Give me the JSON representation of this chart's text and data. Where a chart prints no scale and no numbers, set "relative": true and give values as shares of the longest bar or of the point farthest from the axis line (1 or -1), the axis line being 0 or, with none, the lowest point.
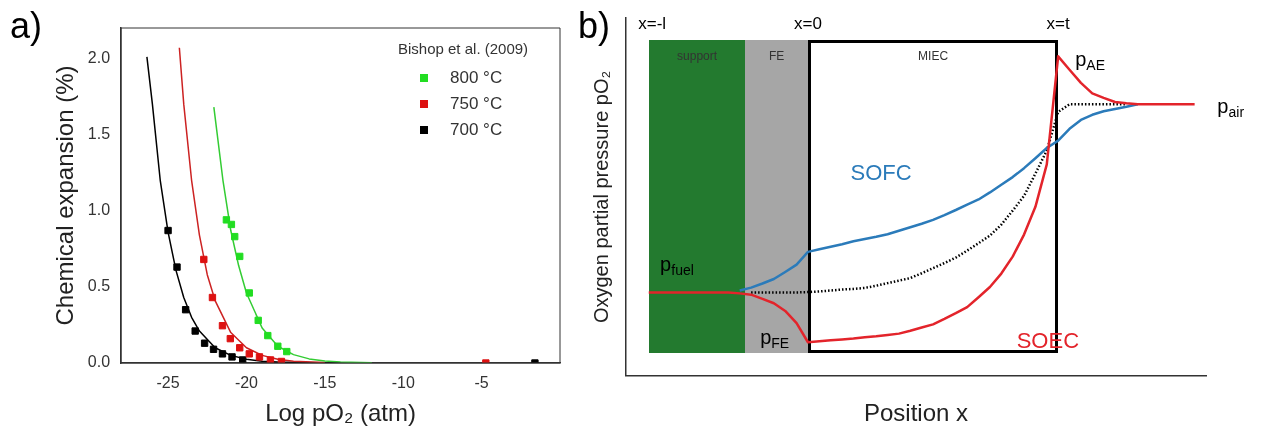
{
  "chart_data": [
    {
      "type": "scatter",
      "title": "a)",
      "xlabel": "Log pO₂ (atm)",
      "ylabel": "Chemical expansion (%)",
      "legend_title": "Bishop et al. (2009)",
      "legend": "top right",
      "xlim": [
        -28,
        0
      ],
      "xticks": [
        -25,
        -20,
        -15,
        -10,
        -5
      ],
      "ylim": [
        0,
        2.2
      ],
      "yticks": [
        {
          "value": 0,
          "label": "0.0"
        },
        {
          "value": 0.5,
          "label": "0.5"
        },
        {
          "value": 1,
          "label": "1.0"
        },
        {
          "value": 1.5,
          "label": "1.5"
        },
        {
          "value": 2,
          "label": "2.0"
        }
      ],
      "series": [
        {
          "name": "800 °C",
          "type": "scatter",
          "marker": "square",
          "color": "#22dd22",
          "x": [
            -21.28,
            -20.96,
            -20.75,
            -20.43,
            -19.82,
            -19.25,
            -18.64,
            -18.0,
            -17.43
          ],
          "values": [
            0.94,
            0.91,
            0.83,
            0.7,
            0.46,
            0.28,
            0.18,
            0.11,
            0.075
          ]
        },
        {
          "name": "750 °C",
          "type": "scatter",
          "marker": "square",
          "color": "#dd1111",
          "x": [
            -22.72,
            -22.17,
            -21.53,
            -21.03,
            -20.43,
            -19.82,
            -19.17,
            -18.47,
            -17.77,
            -4.73
          ],
          "values": [
            0.68,
            0.43,
            0.245,
            0.16,
            0.1,
            0.06,
            0.04,
            0.02,
            0.01,
            0
          ]
        },
        {
          "name": "700 °C",
          "type": "scatter",
          "marker": "square",
          "color": "#000000",
          "x": [
            -25.0,
            -24.43,
            -23.88,
            -23.27,
            -22.67,
            -22.1,
            -21.53,
            -20.92,
            -20.24,
            -1.6
          ],
          "values": [
            0.87,
            0.63,
            0.35,
            0.21,
            0.13,
            0.09,
            0.06,
            0.04,
            0.02,
            0
          ]
        },
        {
          "type": "line",
          "marker": "none",
          "line_style": "solid",
          "color": "#33cc33",
          "x": [
            -22.08,
            -21.5,
            -21,
            -20.5,
            -20,
            -19,
            -18,
            -17,
            -16,
            -15,
            -14,
            -12
          ],
          "values": [
            1.68,
            1.2,
            0.87,
            0.64,
            0.46,
            0.23,
            0.11,
            0.055,
            0.027,
            0.013,
            0.006,
            0.002
          ]
        },
        {
          "type": "line",
          "marker": "none",
          "line_style": "solid",
          "color": "#cc2222",
          "x": [
            -24.28,
            -24,
            -23.5,
            -23,
            -22.5,
            -22,
            -21,
            -20,
            -19,
            -18,
            -17,
            -15
          ],
          "values": [
            2.07,
            1.7,
            1.2,
            0.84,
            0.58,
            0.41,
            0.2,
            0.1,
            0.05,
            0.025,
            0.012,
            0.003
          ]
        },
        {
          "type": "line",
          "marker": "none",
          "line_style": "solid",
          "color": "#000000",
          "x": [
            -26.35,
            -26,
            -25.5,
            -25,
            -24.5,
            -24,
            -23.5,
            -23,
            -22,
            -21,
            -20,
            -19,
            -18,
            -16,
            -14
          ],
          "values": [
            2.01,
            1.7,
            1.2,
            0.86,
            0.61,
            0.43,
            0.3,
            0.21,
            0.1,
            0.05,
            0.025,
            0.012,
            0.006,
            0.001,
            0
          ]
        }
      ]
    },
    {
      "type": "line",
      "title": "b)",
      "xlabel": "Position x",
      "ylabel": "Oxygen partial pressure pO₂",
      "relative": true,
      "legend": false,
      "categories": [
        null,
        null,
        null,
        null,
        null,
        null,
        null,
        null,
        null,
        null,
        null,
        null,
        null,
        null,
        null,
        null,
        null,
        null,
        null,
        null,
        null,
        null,
        null,
        null,
        null,
        null,
        null,
        null,
        null,
        null,
        null,
        null,
        null,
        null,
        null,
        null,
        null,
        null,
        null,
        null,
        null,
        null,
        null,
        null,
        null,
        null,
        null,
        null,
        null,
        null,
        null,
        null
      ],
      "annotations": [
        "support",
        "FE",
        "MIEC",
        "x=-l",
        "x=0",
        "x=t",
        "p$_{fuel}$",
        "p$_{FE}$",
        "p$_{AE}$",
        "p$_{air}$"
      ],
      "series": [
        {
          "name": "SOEC",
          "marker": "none",
          "line_style": "solid",
          "color": "#e3242b",
          "values": [
            null,
            null,
            0.261,
            0.261,
            0.261,
            0.261,
            0.261,
            0.261,
            0.261,
            0.261,
            0.258,
            0.254,
            0.241,
            0.227,
            0.203,
            0.165,
            0.105,
            0.108,
            0.111,
            0.114,
            0.117,
            0.121,
            0.124,
            0.128,
            0.132,
            0.141,
            0.151,
            0.161,
            0.178,
            0.196,
            0.215,
            0.246,
            0.278,
            0.32,
            0.373,
            0.442,
            0.529,
            0.662,
            1,
            0.958,
            0.917,
            0.884,
            0.87,
            0.857,
            0.853,
            0.85,
            0.85,
            0.85,
            0.85,
            0.85,
            0.85,
            null
          ]
        },
        {
          "name": "SOFC",
          "marker": "none",
          "line_style": "solid",
          "color": "#2b7bba",
          "values": [
            null,
            null,
            null,
            null,
            null,
            null,
            null,
            null,
            null,
            null,
            0.267,
            0.276,
            0.289,
            0.303,
            0.325,
            0.348,
            0.388,
            0.396,
            0.404,
            0.412,
            0.421,
            0.428,
            0.435,
            0.443,
            0.454,
            0.465,
            0.476,
            0.488,
            0.503,
            0.519,
            0.536,
            0.552,
            0.574,
            0.598,
            0.622,
            0.65,
            0.681,
            0.713,
            0.736,
            0.773,
            0.801,
            0.817,
            0.828,
            0.835,
            0.842,
            0.85,
            null,
            null,
            null,
            null,
            null,
            null
          ]
        },
        {
          "marker": "none",
          "line_style": "dotted",
          "color": "#000000",
          "values": [
            null,
            null,
            null,
            null,
            null,
            null,
            null,
            null,
            null,
            null,
            null,
            0.261,
            0.261,
            0.261,
            0.261,
            0.261,
            0.262,
            0.264,
            0.267,
            0.27,
            0.272,
            0.275,
            0.282,
            0.29,
            0.298,
            0.306,
            0.321,
            0.337,
            0.353,
            0.37,
            0.392,
            0.415,
            0.439,
            0.473,
            0.517,
            0.563,
            0.633,
            0.705,
            0.826,
            0.85,
            0.85,
            0.85,
            0.85,
            0.85,
            0.85,
            null,
            null,
            null,
            null,
            null,
            null,
            null
          ]
        }
      ]
    }
  ]
}
